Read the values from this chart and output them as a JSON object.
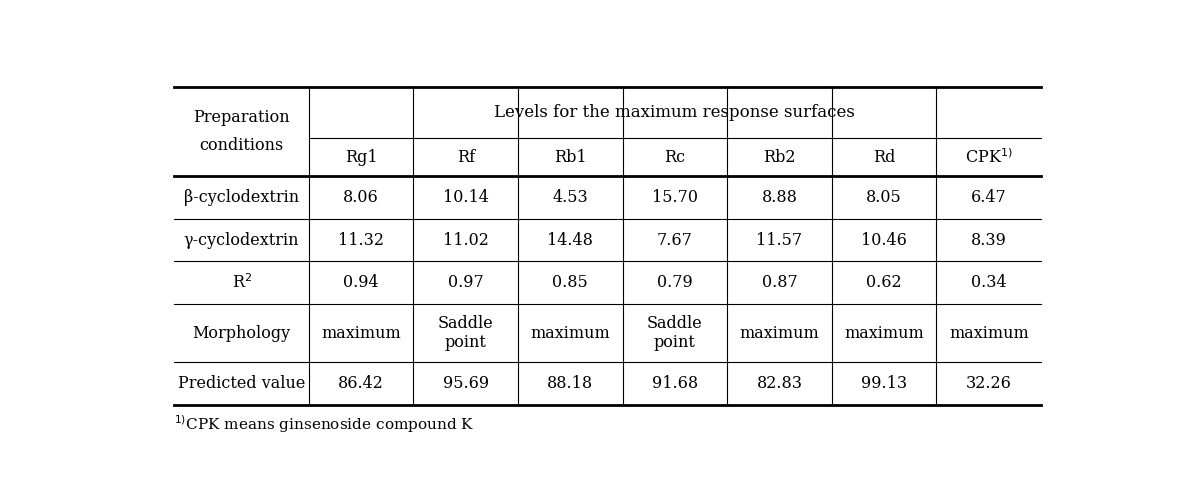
{
  "header_col_text": "Preparation\nconditions",
  "header_span_text": "Levels for the maximum response surfaces",
  "sub_headers": [
    "Rg1",
    "Rf",
    "Rb1",
    "Rc",
    "Rb2",
    "Rd",
    "CPK$^{1)}$"
  ],
  "row_labels": [
    "β-cyclodextrin",
    "γ-cyclodextrin",
    "R$^{2}$",
    "Morphology",
    "Predicted value"
  ],
  "row_values": [
    [
      "8.06",
      "10.14",
      "4.53",
      "15.70",
      "8.88",
      "8.05",
      "6.47"
    ],
    [
      "11.32",
      "11.02",
      "14.48",
      "7.67",
      "11.57",
      "10.46",
      "8.39"
    ],
    [
      "0.94",
      "0.97",
      "0.85",
      "0.79",
      "0.87",
      "0.62",
      "0.34"
    ],
    [
      "maximum",
      "Saddle\npoint",
      "maximum",
      "Saddle\npoint",
      "maximum",
      "maximum",
      "maximum"
    ],
    [
      "86.42",
      "95.69",
      "88.18",
      "91.68",
      "82.83",
      "99.13",
      "32.26"
    ]
  ],
  "footnote": "$^{1)}$CPK means ginsenoside compound K",
  "bg_color": "#ffffff",
  "text_color": "#000000",
  "line_color": "#000000",
  "font_size": 11.5,
  "header_font_size": 12
}
